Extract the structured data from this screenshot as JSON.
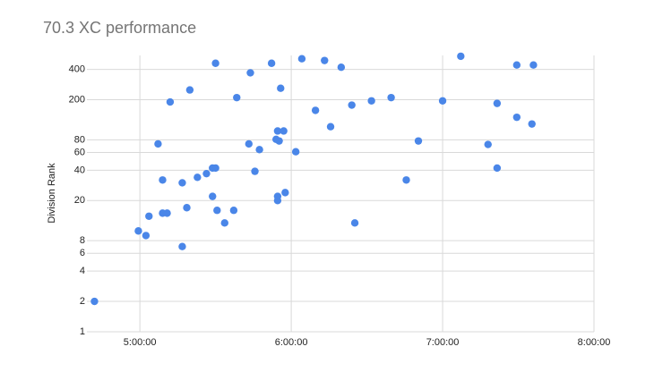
{
  "chart_data": {
    "type": "scatter",
    "title": "70.3 XC performance",
    "y_label": "Division Rank",
    "color": "#4a86e8",
    "log_y": true,
    "grid": true,
    "xlim": [
      4.65,
      8.0
    ],
    "xticks": [
      {
        "value": 5,
        "label": "5:00:00"
      },
      {
        "value": 6,
        "label": "6:00:00"
      },
      {
        "value": 7,
        "label": "7:00:00"
      },
      {
        "value": 8,
        "label": "8:00:00"
      }
    ],
    "ylim": [
      1,
      550
    ],
    "yticks": [
      1,
      2,
      4,
      6,
      8,
      20,
      40,
      60,
      80,
      200,
      400
    ],
    "x": [
      4.7,
      4.99,
      5.04,
      5.06,
      5.12,
      5.15,
      5.15,
      5.18,
      5.2,
      5.28,
      5.28,
      5.31,
      5.33,
      5.38,
      5.44,
      5.48,
      5.48,
      5.5,
      5.5,
      5.51,
      5.56,
      5.62,
      5.64,
      5.72,
      5.73,
      5.76,
      5.79,
      5.87,
      5.9,
      5.91,
      5.91,
      5.91,
      5.92,
      5.95,
      5.93,
      5.96,
      6.03,
      6.07,
      6.16,
      6.22,
      6.26,
      6.33,
      6.4,
      6.42,
      6.53,
      6.66,
      6.76,
      6.84,
      7.0,
      7.12,
      7.3,
      7.36,
      7.36,
      7.49,
      7.49,
      7.59,
      7.6
    ],
    "values": [
      2,
      10,
      9,
      14,
      73,
      32,
      15,
      15,
      190,
      7,
      30,
      17,
      250,
      34,
      37,
      42,
      22,
      42,
      460,
      16,
      12,
      16,
      210,
      73,
      370,
      39,
      64,
      460,
      81,
      22,
      20,
      98,
      78,
      98,
      260,
      24,
      61,
      510,
      157,
      490,
      108,
      420,
      177,
      12,
      195,
      210,
      32,
      78,
      195,
      540,
      72,
      184,
      42,
      134,
      442,
      115,
      442
    ]
  }
}
